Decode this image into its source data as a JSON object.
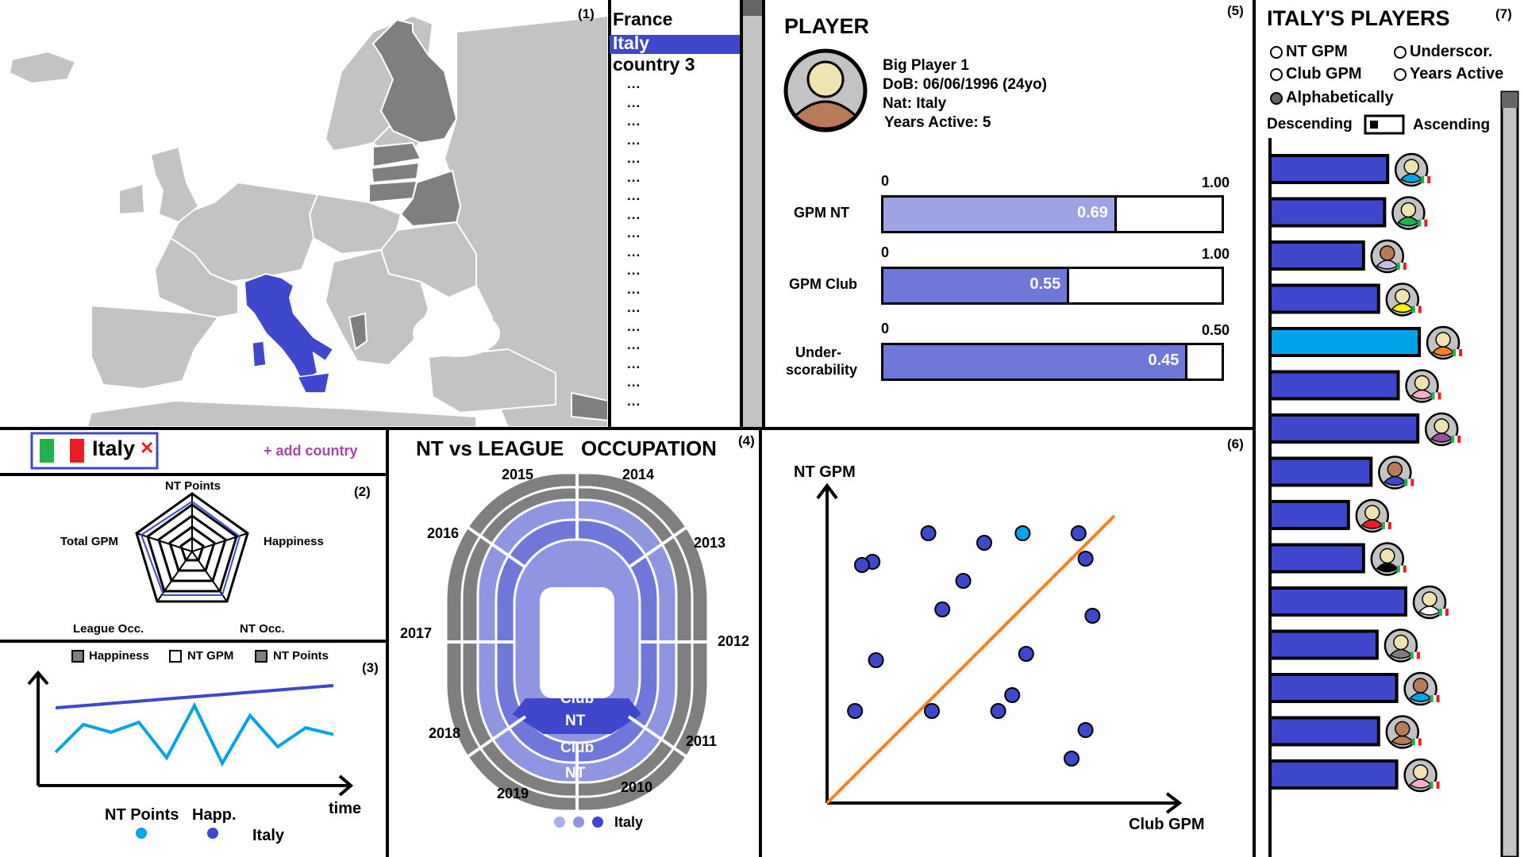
{
  "panel_numbers": {
    "map": "(1)",
    "radar": "(2)",
    "lines": "(3)",
    "stadium": "(4)",
    "player": "(5)",
    "scatter": "(6)",
    "players_list": "(7)"
  },
  "colors": {
    "selected": "#3f48cc",
    "highlight": "#00a2e8",
    "light": "#8f95e0",
    "orange": "#ff7f27",
    "grey": "#c3c3c3",
    "dark": "#7f7f7f"
  },
  "map": {
    "selected_country": "Italy"
  },
  "country_list": {
    "items": [
      "France",
      "Italy",
      "country 3"
    ],
    "selected_index": 1,
    "dots": [
      "...",
      "...",
      "...",
      "...",
      "...",
      "...",
      "...",
      "...",
      "...",
      "...",
      "...",
      "...",
      "...",
      "...",
      "...",
      "...",
      "...",
      "..."
    ]
  },
  "selector": {
    "country": "Italy",
    "remove_icon": "close-icon",
    "add_label": "+ add country"
  },
  "radar": {
    "axes": [
      "NT Points",
      "Happiness",
      "NT Occ.",
      "League Occ.",
      "Total GPM"
    ]
  },
  "lines": {
    "legend": [
      {
        "label": "Happiness",
        "fill": "#7f7f7f"
      },
      {
        "label": "NT GPM",
        "fill": "#ffffff"
      },
      {
        "label": "NT Points",
        "fill": "#7f7f7f"
      }
    ],
    "x_label": "time",
    "bottom_legend": {
      "nt_points": "NT Points",
      "happ": "Happ.",
      "country": "Italy"
    }
  },
  "stadium": {
    "title": "NT vs LEAGUE   OCCUPATION",
    "years": [
      "2015",
      "2014",
      "2016",
      "2013",
      "2017",
      "2012",
      "2018",
      "2011",
      "2019",
      "2010"
    ],
    "ring_labels": [
      "Club",
      "NT",
      "Club",
      "NT"
    ],
    "legend_label": "Italy"
  },
  "player": {
    "heading": "PLAYER",
    "name": "Big Player 1",
    "dob": "DoB: 06/06/1996 (24yo)",
    "nat": "Nat: Italy",
    "years": "Years Active: 5",
    "bars": [
      {
        "label": "GPM NT",
        "min": "0",
        "max": "1.00",
        "value": 0.69,
        "display": "0.69"
      },
      {
        "label": "GPM Club",
        "min": "0",
        "max": "1.00",
        "value": 0.55,
        "display": "0.55"
      },
      {
        "label1": "Under-",
        "label2": "scorability",
        "min": "0",
        "max": "0.50",
        "value": 0.45,
        "display": "0.45"
      }
    ]
  },
  "scatter": {
    "x_label": "Club GPM",
    "y_label": "NT GPM"
  },
  "players_list": {
    "title": "ITALY'S PLAYERS",
    "sort_options": [
      {
        "label": "NT GPM",
        "checked": false
      },
      {
        "label": "Underscor.",
        "checked": false
      },
      {
        "label": "Club GPM",
        "checked": false
      },
      {
        "label": "Years Active",
        "checked": false
      },
      {
        "label": "Alphabetically",
        "checked": true
      }
    ],
    "order_left": "Descending",
    "order_right": "Ascending",
    "bars": [
      0.78,
      0.76,
      0.62,
      0.72,
      0.99,
      0.85,
      0.98,
      0.67,
      0.52,
      0.62,
      0.9,
      0.71,
      0.84,
      0.72,
      0.84
    ],
    "highlighted_index": 4,
    "shirt_colors": [
      "#00a2e8",
      "#22b14c",
      "#c8bfe7",
      "#fff200",
      "#ff7f27",
      "#ffaec9",
      "#a349a4",
      "#3f48cc",
      "#ed1c24",
      "#000000",
      "#ffffff",
      "#7f7f7f",
      "#00a2e8",
      "#b97a57",
      "#ffaec9"
    ],
    "skin_colors": [
      "#efe4b0",
      "#efe4b0",
      "#b97a57",
      "#efe4b0",
      "#efe4b0",
      "#efe4b0",
      "#efe4b0",
      "#b97a57",
      "#efe4b0",
      "#efe4b0",
      "#efe4b0",
      "#efe4b0",
      "#b97a57",
      "#b97a57",
      "#efe4b0"
    ]
  },
  "chart_data": [
    {
      "type": "scatter",
      "xlabel": "Club GPM",
      "ylabel": "NT GPM",
      "points": [
        {
          "x": 0.29,
          "y": 0.85
        },
        {
          "x": 0.14,
          "y": 0.45
        },
        {
          "x": 0.3,
          "y": 0.29
        },
        {
          "x": 0.39,
          "y": 0.7
        },
        {
          "x": 0.45,
          "y": 0.82
        },
        {
          "x": 0.56,
          "y": 0.85
        },
        {
          "x": 0.13,
          "y": 0.76
        },
        {
          "x": 0.33,
          "y": 0.61
        },
        {
          "x": 0.57,
          "y": 0.47
        },
        {
          "x": 0.53,
          "y": 0.34
        },
        {
          "x": 0.49,
          "y": 0.29
        },
        {
          "x": 0.74,
          "y": 0.77
        },
        {
          "x": 0.76,
          "y": 0.59
        },
        {
          "x": 0.74,
          "y": 0.23
        },
        {
          "x": 0.08,
          "y": 0.29
        },
        {
          "x": 0.7,
          "y": 0.14
        },
        {
          "x": 0.1,
          "y": 0.75
        },
        {
          "x": 0.72,
          "y": 0.85
        }
      ],
      "highlighted_index": 5
    },
    {
      "type": "line",
      "series": [
        {
          "name": "NT Points",
          "values": [
            0.3,
            0.55,
            0.48,
            0.57,
            0.25,
            0.72,
            0.2,
            0.63,
            0.35,
            0.52,
            0.46
          ]
        },
        {
          "name": "Happ.",
          "values": [
            0.7,
            0.72,
            0.74,
            0.76,
            0.78,
            0.8,
            0.82,
            0.84,
            0.86,
            0.88,
            0.9
          ]
        }
      ]
    }
  ]
}
